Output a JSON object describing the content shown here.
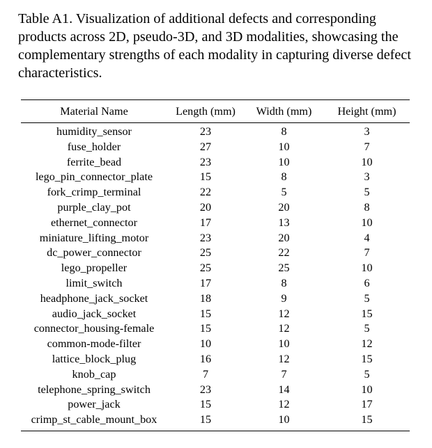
{
  "caption": "Table A1. Visualization of additional defects and corresponding products across 2D, pseudo-3D, and 3D modalities, showcasing the complementary strengths of each modality in capturing diverse defect characteristics.",
  "table": {
    "headers": [
      "Material Name",
      "Length (mm)",
      "Width (mm)",
      "Height (mm)"
    ],
    "rows": [
      [
        "humidity_sensor",
        "23",
        "8",
        "3"
      ],
      [
        "fuse_holder",
        "27",
        "10",
        "7"
      ],
      [
        "ferrite_bead",
        "23",
        "10",
        "10"
      ],
      [
        "lego_pin_connector_plate",
        "15",
        "8",
        "3"
      ],
      [
        "fork_crimp_terminal",
        "22",
        "5",
        "5"
      ],
      [
        "purple_clay_pot",
        "20",
        "20",
        "8"
      ],
      [
        "ethernet_connector",
        "17",
        "13",
        "10"
      ],
      [
        "miniature_lifting_motor",
        "23",
        "20",
        "4"
      ],
      [
        "dc_power_connector",
        "25",
        "22",
        "7"
      ],
      [
        "lego_propeller",
        "25",
        "25",
        "10"
      ],
      [
        "limit_switch",
        "17",
        "8",
        "6"
      ],
      [
        "headphone_jack_socket",
        "18",
        "9",
        "5"
      ],
      [
        "audio_jack_socket",
        "15",
        "12",
        "15"
      ],
      [
        "connector_housing-female",
        "15",
        "12",
        "5"
      ],
      [
        "common-mode-filter",
        "10",
        "10",
        "12"
      ],
      [
        "lattice_block_plug",
        "16",
        "12",
        "15"
      ],
      [
        "knob_cap",
        "7",
        "7",
        "5"
      ],
      [
        "telephone_spring_switch",
        "23",
        "14",
        "10"
      ],
      [
        "power_jack",
        "15",
        "12",
        "17"
      ],
      [
        "crimp_st_cable_mount_box",
        "15",
        "10",
        "15"
      ]
    ]
  }
}
